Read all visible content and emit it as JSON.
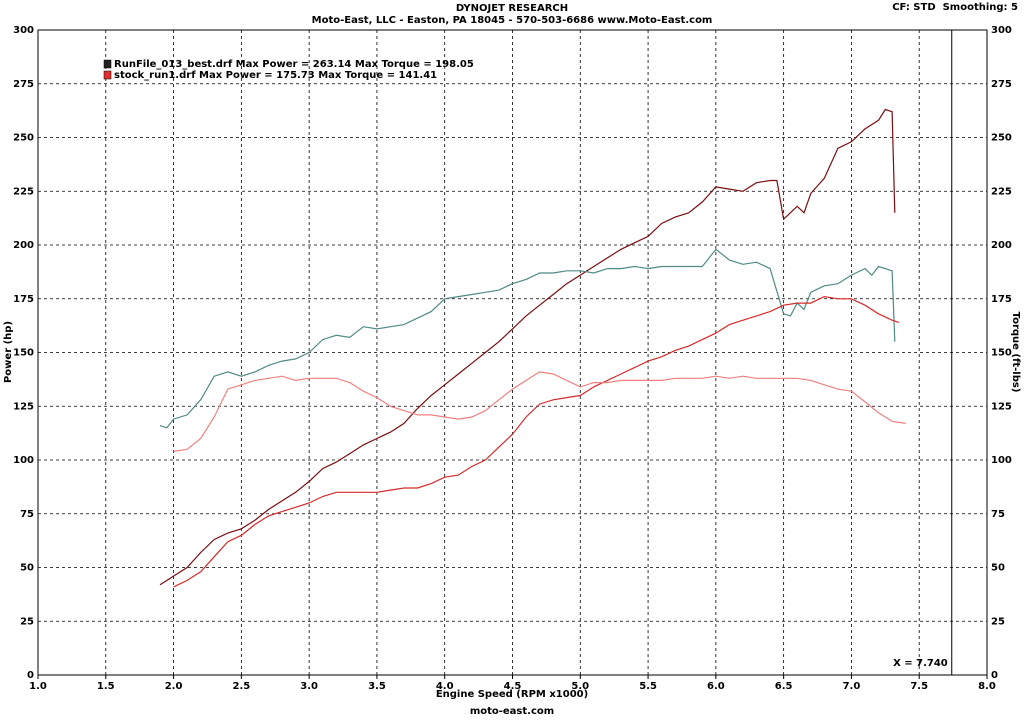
{
  "chart_data": {
    "type": "line",
    "title": "DYNOJET RESEARCH",
    "subtitle": "Moto-East, LLC - Easton, PA 18045 - 570-503-6686 www.Moto-East.com",
    "settings_text": "CF: STD  Smoothing: 5",
    "x_label": "Engine Speed (RPM x1000)",
    "y_label": "Power (hp)",
    "y2_label": "Torque (ft-lbs)",
    "footer": "moto-east.com",
    "grid": true,
    "xlim": [
      1,
      8
    ],
    "ylim": [
      0,
      300
    ],
    "y2lim": [
      0,
      300
    ],
    "xticks": [
      {
        "value": 1,
        "label": "1.0"
      },
      1.5,
      {
        "value": 2,
        "label": "2.0"
      },
      2.5,
      {
        "value": 3,
        "label": "3.0"
      },
      3.5,
      {
        "value": 4,
        "label": "4.0"
      },
      4.5,
      {
        "value": 5,
        "label": "5.0"
      },
      5.5,
      {
        "value": 6,
        "label": "6.0"
      },
      6.5,
      {
        "value": 7,
        "label": "7.0"
      },
      7.5,
      {
        "value": 8,
        "label": "8.0"
      }
    ],
    "yticks": [
      0,
      25,
      50,
      75,
      100,
      125,
      150,
      175,
      200,
      225,
      250,
      275,
      300
    ],
    "y2ticks": [
      0,
      25,
      50,
      75,
      100,
      125,
      150,
      175,
      200,
      225,
      250,
      275,
      300
    ],
    "cursor": {
      "value": 7.74,
      "label": "X = 7.740"
    },
    "legend": [
      {
        "label": "RunFile_013_best.drf Max Power = 263.14    Max Torque = 198.05",
        "color": "#222222"
      },
      {
        "label": "stock_run1.drf Max Power = 175.73    Max Torque = 141.41",
        "color": "#e03030"
      }
    ],
    "series": [
      {
        "color": "#7a0d12",
        "axis": "y",
        "x": [
          1.9,
          2.0,
          2.1,
          2.2,
          2.3,
          2.4,
          2.5,
          2.6,
          2.7,
          2.8,
          2.9,
          3.0,
          3.1,
          3.2,
          3.3,
          3.4,
          3.5,
          3.6,
          3.7,
          3.8,
          3.9,
          4.0,
          4.1,
          4.2,
          4.3,
          4.4,
          4.5,
          4.6,
          4.7,
          4.8,
          4.9,
          5.0,
          5.1,
          5.2,
          5.3,
          5.4,
          5.5,
          5.6,
          5.7,
          5.8,
          5.9,
          6.0,
          6.1,
          6.2,
          6.3,
          6.4,
          6.45,
          6.5,
          6.6,
          6.65,
          6.7,
          6.8,
          6.9,
          7.0,
          7.1,
          7.2,
          7.25,
          7.3,
          7.32
        ],
        "values": [
          42,
          46,
          50,
          57,
          63,
          66,
          68,
          72,
          77,
          81,
          85,
          90,
          96,
          99,
          103,
          107,
          110,
          113,
          117,
          124,
          130,
          135,
          140,
          145,
          150,
          155,
          161,
          167,
          172,
          177,
          182,
          186,
          190,
          194,
          198,
          201,
          204,
          210,
          213,
          215,
          220,
          227,
          226,
          225,
          229,
          230,
          230,
          212,
          218,
          215,
          224,
          231,
          245,
          248,
          254,
          258,
          263,
          262,
          215
        ]
      },
      {
        "color": "#4f8a84",
        "axis": "y2",
        "x": [
          1.9,
          1.95,
          2.0,
          2.1,
          2.2,
          2.3,
          2.4,
          2.5,
          2.6,
          2.7,
          2.8,
          2.9,
          3.0,
          3.1,
          3.2,
          3.3,
          3.4,
          3.5,
          3.6,
          3.7,
          3.8,
          3.9,
          4.0,
          4.1,
          4.2,
          4.3,
          4.4,
          4.5,
          4.6,
          4.7,
          4.8,
          4.9,
          5.0,
          5.1,
          5.2,
          5.3,
          5.4,
          5.5,
          5.6,
          5.7,
          5.8,
          5.9,
          6.0,
          6.1,
          6.2,
          6.3,
          6.4,
          6.5,
          6.55,
          6.6,
          6.65,
          6.7,
          6.8,
          6.9,
          7.0,
          7.1,
          7.15,
          7.2,
          7.3,
          7.32
        ],
        "values": [
          116,
          115,
          119,
          121,
          128,
          139,
          141,
          139,
          141,
          144,
          146,
          147,
          150,
          156,
          158,
          157,
          162,
          161,
          162,
          163,
          166,
          169,
          175,
          176,
          177,
          178,
          179,
          182,
          184,
          187,
          187,
          188,
          188,
          187,
          189,
          189,
          190,
          189,
          190,
          190,
          190,
          190,
          198,
          193,
          191,
          192,
          189,
          168,
          167,
          173,
          170,
          178,
          181,
          182,
          186,
          189,
          186,
          190,
          188,
          155
        ]
      },
      {
        "color": "#d42a2a",
        "axis": "y",
        "x": [
          2.0,
          2.1,
          2.2,
          2.3,
          2.4,
          2.5,
          2.6,
          2.7,
          2.8,
          2.9,
          3.0,
          3.1,
          3.2,
          3.3,
          3.4,
          3.5,
          3.6,
          3.7,
          3.8,
          3.9,
          4.0,
          4.1,
          4.2,
          4.3,
          4.4,
          4.5,
          4.6,
          4.7,
          4.8,
          4.9,
          5.0,
          5.1,
          5.2,
          5.3,
          5.4,
          5.5,
          5.6,
          5.7,
          5.8,
          5.9,
          6.0,
          6.1,
          6.2,
          6.3,
          6.4,
          6.5,
          6.6,
          6.7,
          6.8,
          6.9,
          7.0,
          7.1,
          7.2,
          7.3,
          7.35
        ],
        "values": [
          41,
          44,
          48,
          55,
          62,
          65,
          70,
          74,
          76,
          78,
          80,
          83,
          85,
          85,
          85,
          85,
          86,
          87,
          87,
          89,
          92,
          93,
          97,
          100,
          106,
          112,
          120,
          126,
          128,
          129,
          130,
          134,
          137,
          140,
          143,
          146,
          148,
          151,
          153,
          156,
          159,
          163,
          165,
          167,
          169,
          172,
          173,
          173,
          176,
          175,
          175,
          172,
          168,
          165,
          164
        ]
      },
      {
        "color": "#f08080",
        "axis": "y2",
        "x": [
          2.0,
          2.1,
          2.2,
          2.3,
          2.4,
          2.5,
          2.6,
          2.7,
          2.8,
          2.9,
          3.0,
          3.1,
          3.2,
          3.3,
          3.4,
          3.5,
          3.6,
          3.7,
          3.8,
          3.9,
          4.0,
          4.1,
          4.2,
          4.3,
          4.4,
          4.5,
          4.6,
          4.7,
          4.8,
          4.9,
          5.0,
          5.1,
          5.2,
          5.3,
          5.4,
          5.5,
          5.6,
          5.7,
          5.8,
          5.9,
          6.0,
          6.1,
          6.2,
          6.3,
          6.4,
          6.5,
          6.6,
          6.7,
          6.8,
          6.9,
          7.0,
          7.1,
          7.2,
          7.3,
          7.4
        ],
        "values": [
          104,
          105,
          110,
          120,
          133,
          135,
          137,
          138,
          139,
          137,
          138,
          138,
          138,
          136,
          132,
          129,
          125,
          123,
          121,
          121,
          120,
          119,
          120,
          123,
          128,
          133,
          137,
          141,
          140,
          137,
          134,
          136,
          136,
          137,
          137,
          137,
          137,
          138,
          138,
          138,
          139,
          138,
          139,
          138,
          138,
          138,
          138,
          137,
          135,
          133,
          132,
          127,
          122,
          118,
          117
        ]
      }
    ]
  }
}
